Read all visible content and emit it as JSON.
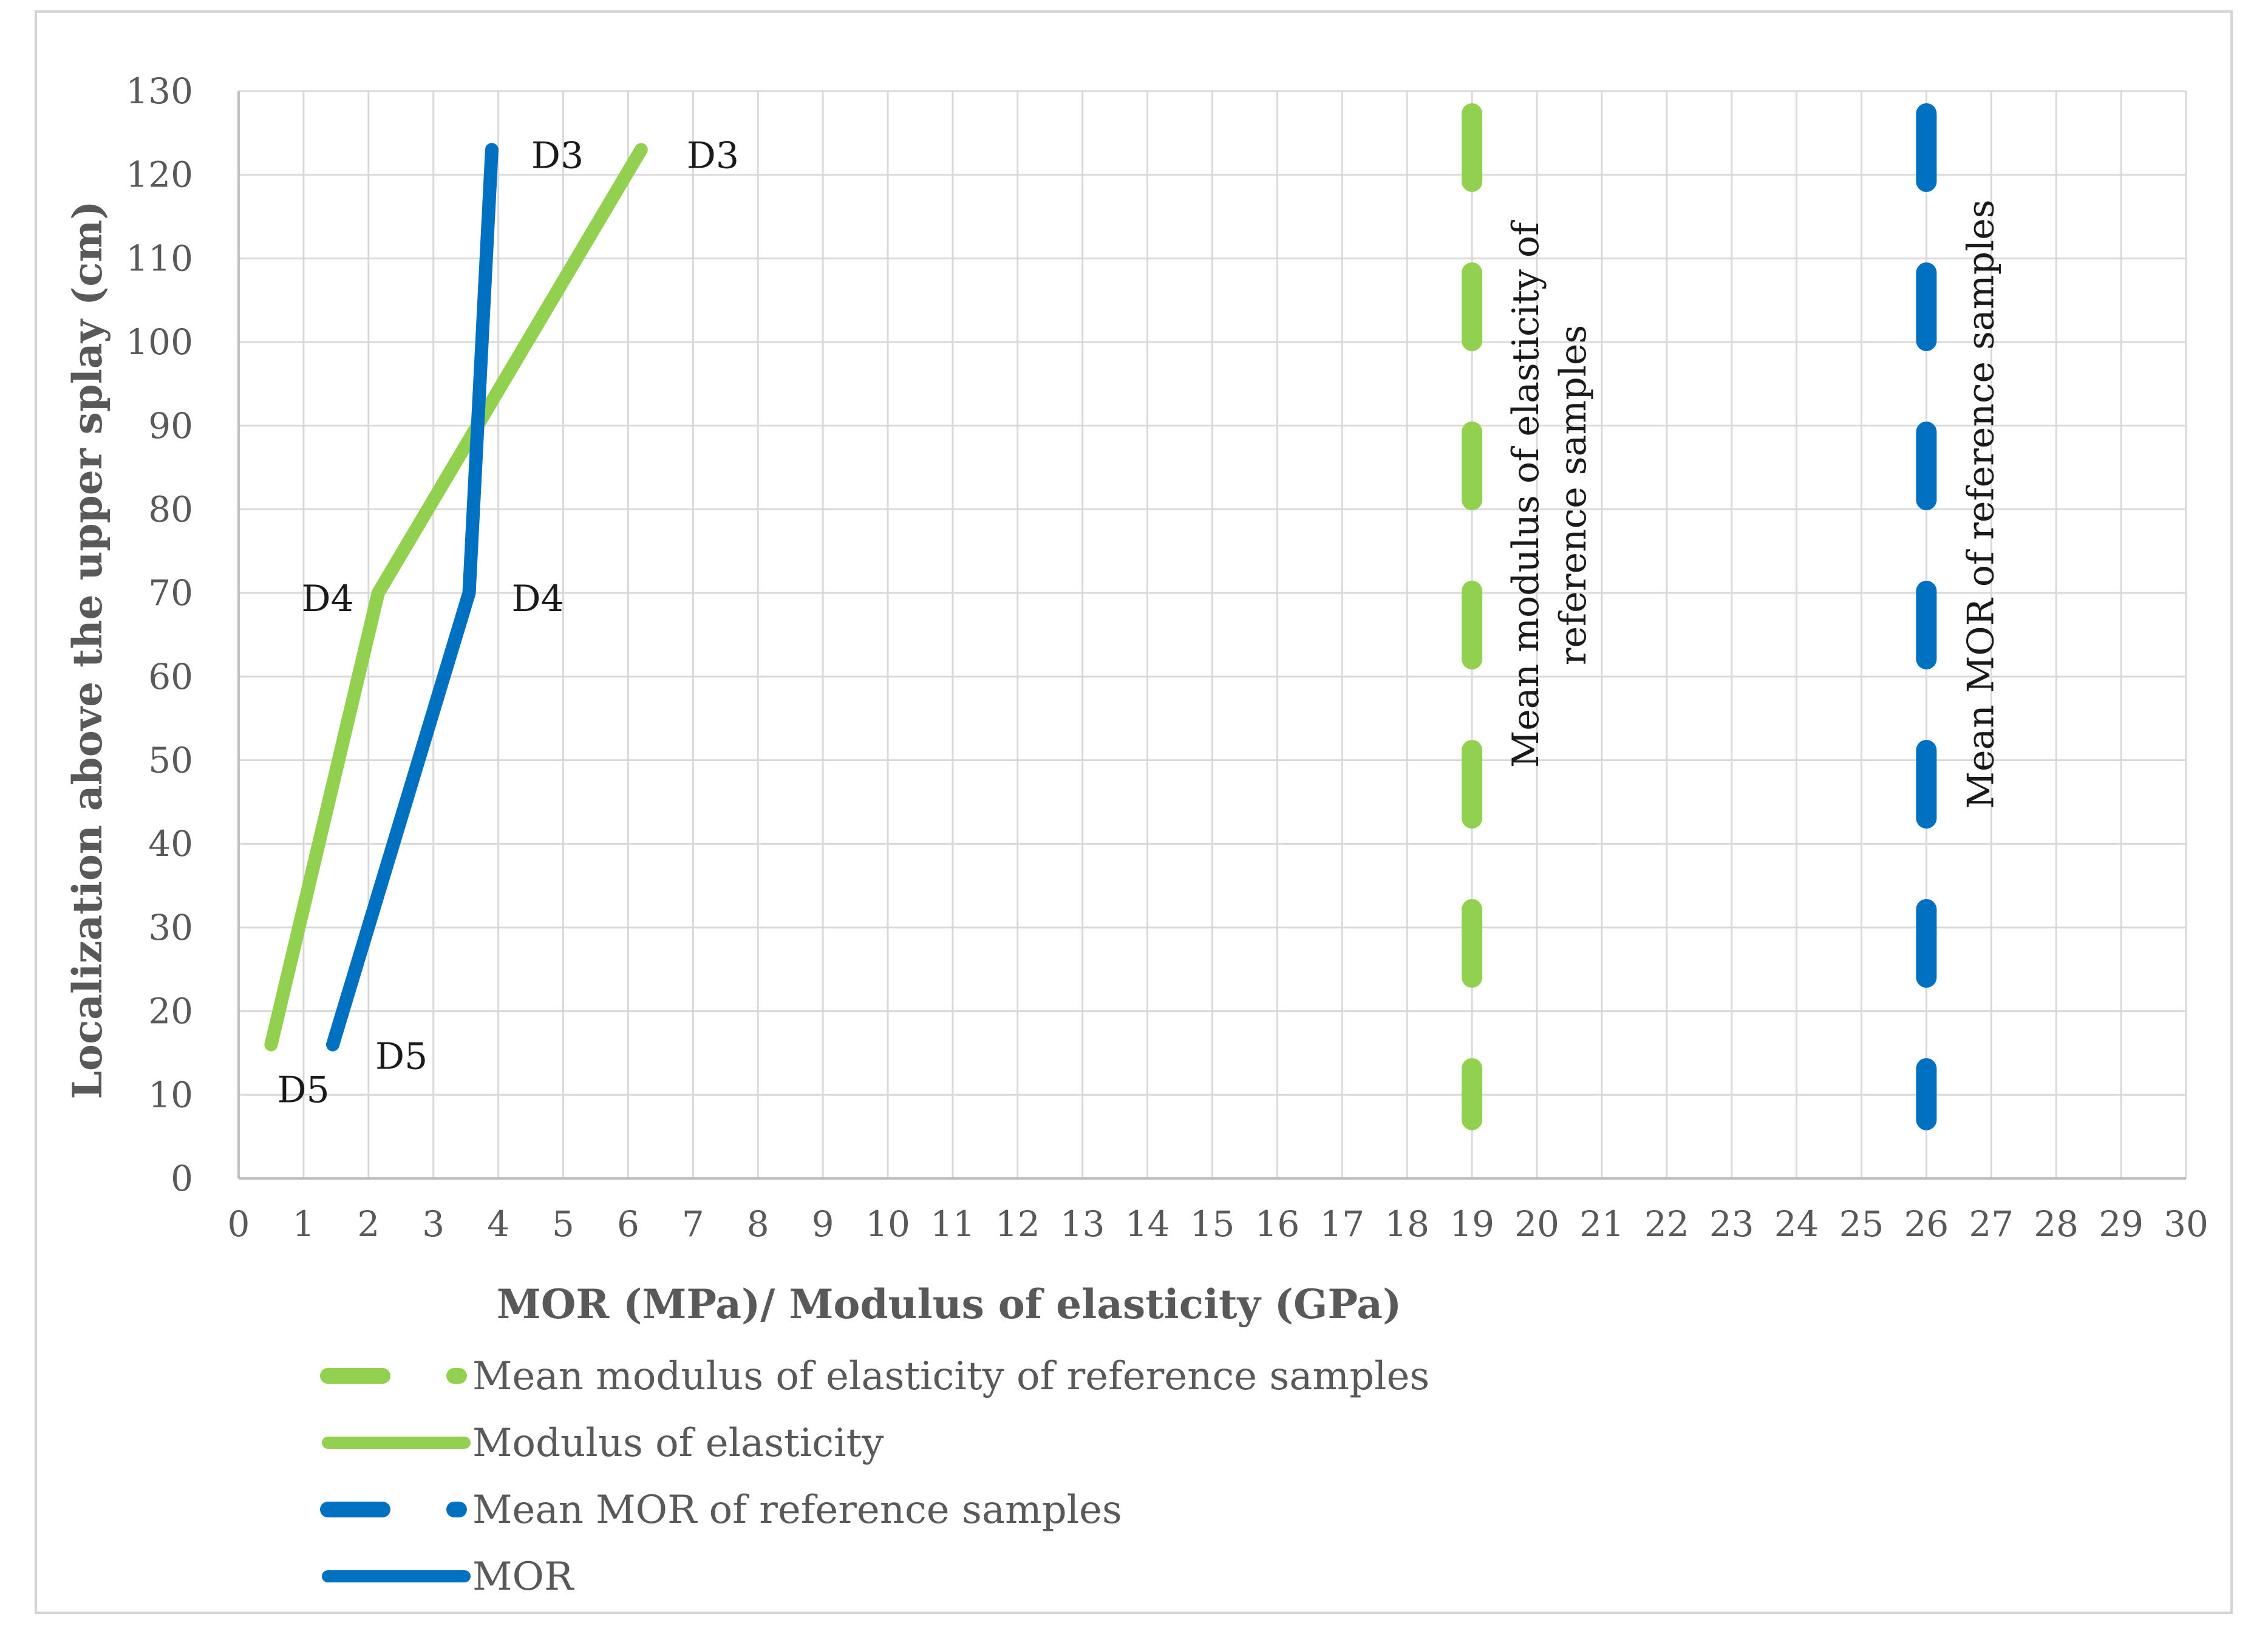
{
  "chart_data": {
    "type": "line",
    "xlabel": "MOR (MPa)/ Modulus of elasticity (GPa)",
    "ylabel": "Localization above the upper splay (cm)",
    "xlim": [
      0,
      30
    ],
    "ylim": [
      0,
      130
    ],
    "x_ticks": [
      "0",
      "1",
      "2",
      "3",
      "4",
      "5",
      "6",
      "7",
      "8",
      "9",
      "10",
      "11",
      "12",
      "13",
      "14",
      "15",
      "16",
      "17",
      "18",
      "19",
      "20",
      "21",
      "22",
      "23",
      "24",
      "25",
      "26",
      "27",
      "28",
      "29",
      "30"
    ],
    "y_ticks": [
      "0",
      "10",
      "20",
      "30",
      "40",
      "50",
      "60",
      "70",
      "80",
      "90",
      "100",
      "110",
      "120",
      "130"
    ],
    "grid": true,
    "colors": {
      "green": "#92d050",
      "blue": "#0070c0",
      "grid": "#d9d9d9",
      "axis": "#bfbfbf"
    },
    "series": [
      {
        "name": "Modulus of elasticity",
        "color": "#92d050",
        "style": "solid",
        "points": [
          {
            "x": 6.2,
            "y": 123,
            "label": "D3"
          },
          {
            "x": 2.15,
            "y": 70,
            "label": "D4"
          },
          {
            "x": 0.5,
            "y": 16,
            "label": "D5"
          }
        ]
      },
      {
        "name": "MOR",
        "color": "#0070c0",
        "style": "solid",
        "points": [
          {
            "x": 3.9,
            "y": 123,
            "label": "D3"
          },
          {
            "x": 3.55,
            "y": 70,
            "label": "D4"
          },
          {
            "x": 1.45,
            "y": 16,
            "label": "D5"
          }
        ]
      }
    ],
    "reference_lines": [
      {
        "name": "Mean modulus of elasticity of reference samples",
        "color": "#92d050",
        "style": "dashed",
        "x": 19,
        "label_lines": [
          "Mean modulus of elasticity of",
          "reference samples"
        ]
      },
      {
        "name": "Mean MOR of reference samples",
        "color": "#0070c0",
        "style": "dashed",
        "x": 26,
        "label_lines": [
          "Mean MOR of reference samples"
        ]
      }
    ],
    "legend": {
      "position": "bottom-left",
      "items": [
        {
          "label": "Mean modulus of elasticity of reference samples",
          "color": "#92d050",
          "style": "dashed"
        },
        {
          "label": "Modulus of elasticity",
          "color": "#92d050",
          "style": "solid"
        },
        {
          "label": "Mean MOR of reference samples",
          "color": "#0070c0",
          "style": "dashed"
        },
        {
          "label": "MOR",
          "color": "#0070c0",
          "style": "solid"
        }
      ]
    }
  }
}
